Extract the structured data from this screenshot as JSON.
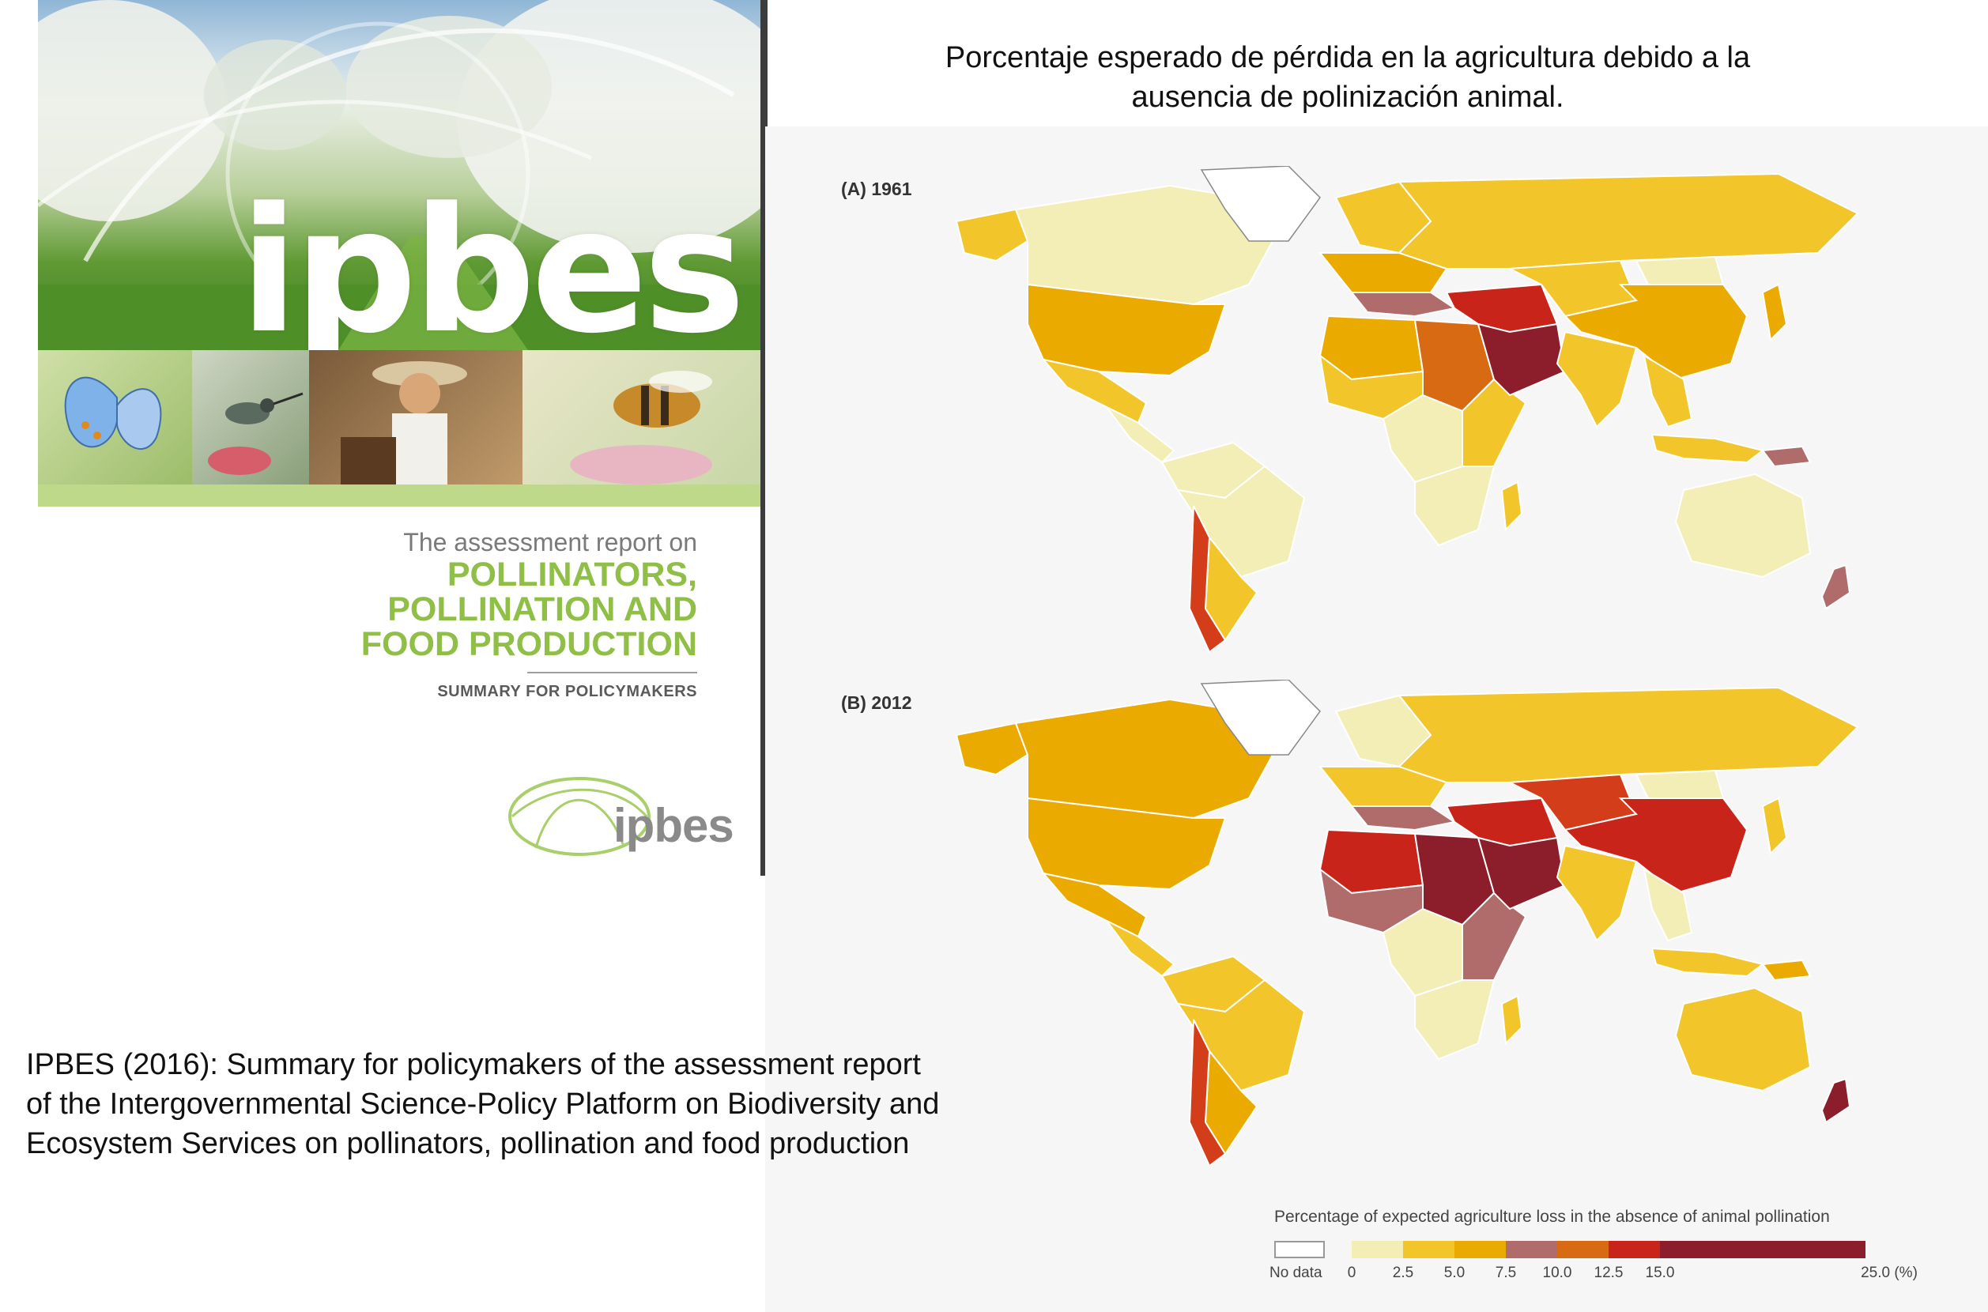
{
  "cover": {
    "logo_text": "ipbes",
    "report_prefix": "The assessment report on",
    "report_title_lines": [
      "POLLINATORS,",
      "POLLINATION AND",
      "FOOD PRODUCTION"
    ],
    "subtitle": "SUMMARY FOR POLICYMAKERS",
    "small_logo_text": "ipbes",
    "photo_strip": [
      "butterfly",
      "hummingbird",
      "beekeeper",
      "bee"
    ]
  },
  "map_title": "Porcentaje esperado de pérdida en la agricultura debido a la ausencia de polinización animal.",
  "citation": "IPBES (2016): Summary for policymakers of the assessment report of the Intergovernmental Science-Policy Platform on Biodiversity and Ecosystem Services on pollinators, pollination and food production",
  "maps": [
    {
      "label": "(A) 1961",
      "regions": {
        "canada": "#f3eeb5",
        "alaska": "#f2c52b",
        "usa": "#eaaa00",
        "mexico": "#f2c52b",
        "central_america": "#f3eeb5",
        "greenland": "#ffffff",
        "south_america_north": "#f3eeb5",
        "brazil": "#f3eeb5",
        "south_america_south": "#f2c52b",
        "chile": "#d43d19",
        "europe_north": "#f2c52b",
        "europe_west": "#eaaa00",
        "europe_south": "#b06b6b",
        "russia": "#f2c52b",
        "africa_north": "#eaaa00",
        "sahara_east": "#d96a14",
        "west_africa": "#f2c52b",
        "central_africa": "#f3eeb5",
        "east_africa": "#f2c52b",
        "southern_africa": "#f3eeb5",
        "madagascar": "#f2c52b",
        "middle_east": "#c9241a",
        "arabia": "#8c1d2a",
        "central_asia": "#f2c52b",
        "mongolia": "#f3eeb5",
        "china": "#eaaa00",
        "india": "#f2c52b",
        "southeast_asia": "#f2c52b",
        "indonesia": "#f2c52b",
        "japan": "#eaaa00",
        "australia": "#f3eeb5",
        "new_zealand": "#b06b6b",
        "papua": "#b06b6b"
      }
    },
    {
      "label": "(B) 2012",
      "regions": {
        "canada": "#eaaa00",
        "alaska": "#eaaa00",
        "usa": "#eaaa00",
        "mexico": "#eaaa00",
        "central_america": "#f2c52b",
        "greenland": "#ffffff",
        "south_america_north": "#f2c52b",
        "brazil": "#f2c52b",
        "south_america_south": "#eaaa00",
        "chile": "#d43d19",
        "europe_north": "#f3eeb5",
        "europe_west": "#f2c52b",
        "europe_south": "#b06b6b",
        "russia": "#f2c52b",
        "africa_north": "#c9241a",
        "sahara_east": "#8c1d2a",
        "west_africa": "#b06b6b",
        "central_africa": "#f3eeb5",
        "east_africa": "#b06b6b",
        "southern_africa": "#f3eeb5",
        "madagascar": "#f2c52b",
        "middle_east": "#c9241a",
        "arabia": "#8c1d2a",
        "central_asia": "#d43d19",
        "mongolia": "#f3eeb5",
        "china": "#c9241a",
        "india": "#f2c52b",
        "southeast_asia": "#f3eeb5",
        "indonesia": "#f2c52b",
        "japan": "#f2c52b",
        "australia": "#f2c52b",
        "new_zealand": "#8c1d2a",
        "papua": "#eaaa00"
      }
    }
  ],
  "legend": {
    "title": "Percentage of expected agriculture loss in the absence of animal pollination",
    "no_data_label": "No data",
    "ticks": [
      "0",
      "2.5",
      "5.0",
      "7.5",
      "10.0",
      "12.5",
      "15.0",
      "25.0 (%)"
    ],
    "bins": [
      {
        "from": 0,
        "to": 2.5,
        "color": "#f3eeb5"
      },
      {
        "from": 2.5,
        "to": 5.0,
        "color": "#f2c52b"
      },
      {
        "from": 5.0,
        "to": 7.5,
        "color": "#eaaa00"
      },
      {
        "from": 7.5,
        "to": 10.0,
        "color": "#b06b6b"
      },
      {
        "from": 10.0,
        "to": 12.5,
        "color": "#d96a14"
      },
      {
        "from": 12.5,
        "to": 15.0,
        "color": "#c9241a"
      },
      {
        "from": 15.0,
        "to": 25.0,
        "color": "#8c1d2a"
      }
    ],
    "no_data_color": "#ffffff"
  }
}
